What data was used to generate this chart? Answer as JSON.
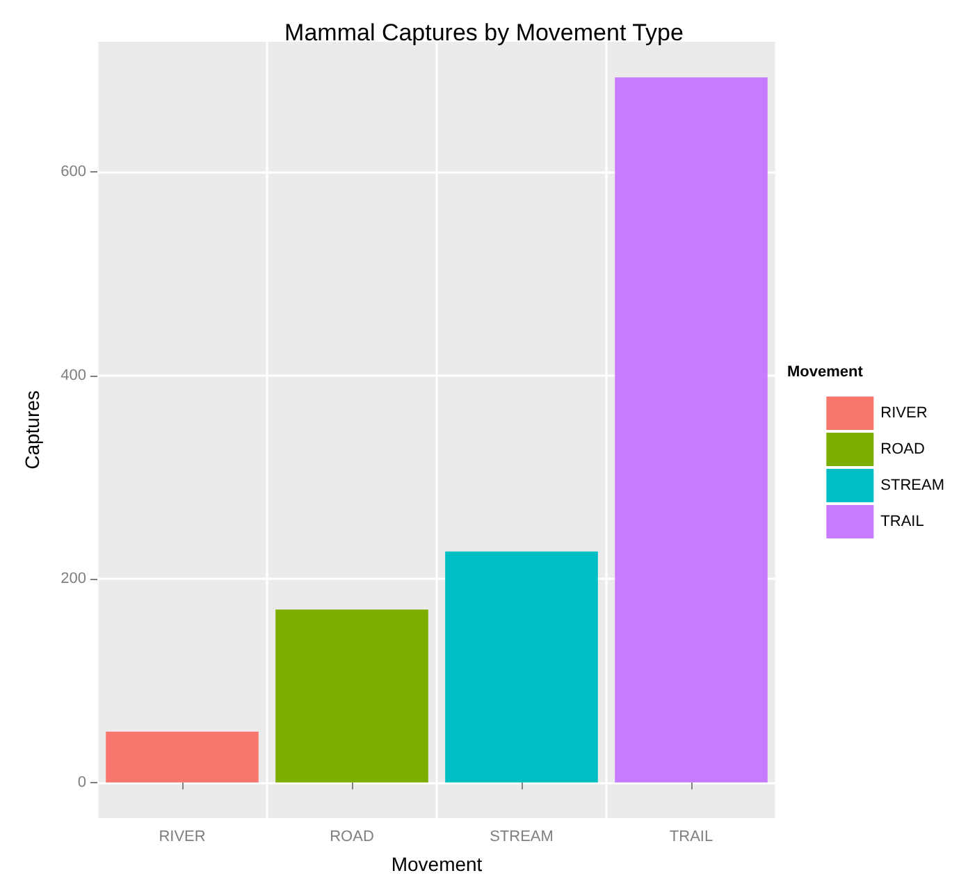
{
  "chart_data": {
    "type": "bar",
    "title": "Mammal Captures by Movement Type",
    "xlabel": "Movement",
    "ylabel": "Captures",
    "legend_title": "Movement",
    "categories": [
      "RIVER",
      "ROAD",
      "STREAM",
      "TRAIL"
    ],
    "stacked": true,
    "series": [
      {
        "name": "RIVER",
        "color": "#f8766d",
        "values": [
          50,
          null,
          null,
          null
        ]
      },
      {
        "name": "ROAD",
        "color": "#7cae00",
        "values": [
          null,
          170,
          null,
          null
        ]
      },
      {
        "name": "STREAM",
        "color": "#00bfc4",
        "values": [
          null,
          null,
          227,
          null
        ]
      },
      {
        "name": "TRAIL",
        "color": "#c77cff",
        "values": [
          null,
          null,
          null,
          693
        ]
      }
    ],
    "ylim": [
      -35,
      728
    ],
    "yticks": [
      0,
      200,
      400,
      600
    ],
    "grid": true,
    "legend": "right"
  }
}
